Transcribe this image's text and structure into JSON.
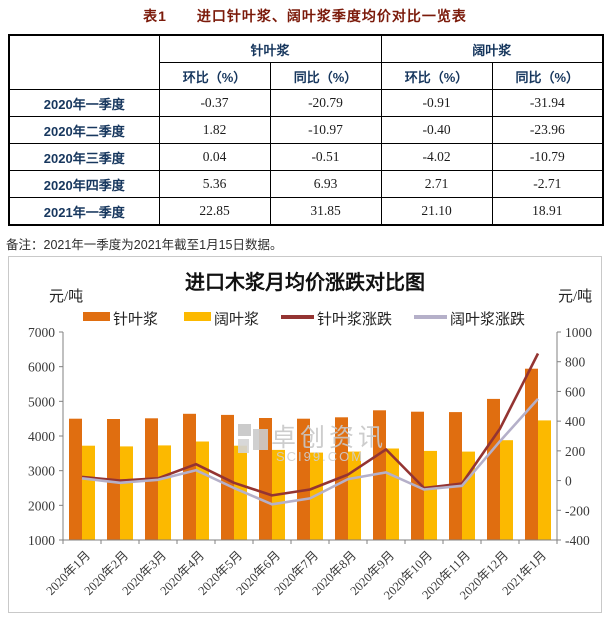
{
  "table": {
    "title": "表1　　进口针叶浆、阔叶浆季度均价对比一览表",
    "group_headers": [
      "针叶浆",
      "阔叶浆"
    ],
    "sub_headers": [
      "环比（%）",
      "同比（%）",
      "环比（%）",
      "同比（%）"
    ],
    "rows": [
      {
        "label": "2020年一季度",
        "values": [
          "-0.37",
          "-20.79",
          "-0.91",
          "-31.94"
        ]
      },
      {
        "label": "2020年二季度",
        "values": [
          "1.82",
          "-10.97",
          "-0.40",
          "-23.96"
        ]
      },
      {
        "label": "2020年三季度",
        "values": [
          "0.04",
          "-0.51",
          "-4.02",
          "-10.79"
        ]
      },
      {
        "label": "2020年四季度",
        "values": [
          "5.36",
          "6.93",
          "2.71",
          "-2.71"
        ]
      },
      {
        "label": "2021年一季度",
        "values": [
          "22.85",
          "31.85",
          "21.10",
          "18.91"
        ]
      }
    ],
    "note": "备注：2021年一季度为2021年截至1月15日数据。",
    "header_color": "#17375E",
    "title_color": "#7B1A0A"
  },
  "chart_data": {
    "type": "bar",
    "subtype": "combo-bar-line-dual-axis",
    "title": "进口木浆月均价涨跌对比图",
    "categories": [
      "2020年1月",
      "2020年2月",
      "2020年3月",
      "2020年4月",
      "2020年5月",
      "2020年6月",
      "2020年7月",
      "2020年8月",
      "2020年9月",
      "2020年10月",
      "2020年11月",
      "2020年12月",
      "2021年1月"
    ],
    "left_axis": {
      "unit": "元/吨",
      "min": 1000,
      "max": 7000,
      "step": 1000
    },
    "right_axis": {
      "unit": "元/吨",
      "min": -400,
      "max": 1000,
      "step": 200
    },
    "gridlines": false,
    "legend_position": "top",
    "series": [
      {
        "id": "softwood-pulp",
        "name": "针叶浆",
        "type": "bar",
        "axis": "left",
        "color": "#E06E10",
        "values": [
          4500,
          4490,
          4510,
          4640,
          4610,
          4520,
          4500,
          4540,
          4740,
          4700,
          4690,
          5070,
          5940
        ]
      },
      {
        "id": "hardwood-pulp",
        "name": "阔叶浆",
        "type": "bar",
        "axis": "left",
        "color": "#FCB900",
        "values": [
          3720,
          3700,
          3730,
          3840,
          3720,
          3600,
          3520,
          3550,
          3640,
          3570,
          3550,
          3880,
          4450
        ]
      },
      {
        "id": "softwood-change",
        "name": "针叶浆涨跌",
        "type": "line",
        "axis": "right",
        "color": "#943432",
        "values": [
          25,
          0,
          15,
          110,
          -15,
          -100,
          -60,
          40,
          210,
          -50,
          -20,
          350,
          855
        ]
      },
      {
        "id": "hardwood-change",
        "name": "阔叶浆涨跌",
        "type": "line",
        "axis": "right",
        "color": "#B5B0C9",
        "values": [
          15,
          -15,
          5,
          70,
          -50,
          -160,
          -120,
          10,
          55,
          -60,
          -35,
          265,
          550
        ]
      }
    ],
    "watermark": {
      "line1": "卓创资讯",
      "line2": "SCI99.COM"
    }
  }
}
